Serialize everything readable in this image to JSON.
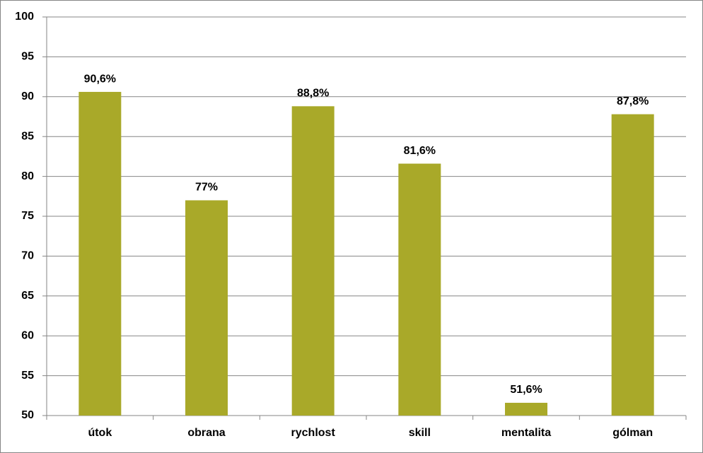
{
  "chart_data": {
    "type": "bar",
    "categories": [
      "útok",
      "obrana",
      "rychlost",
      "skill",
      "mentalita",
      "gólman"
    ],
    "values": [
      90.6,
      77,
      88.8,
      81.6,
      51.6,
      87.8
    ],
    "value_labels": [
      "90,6%",
      "77%",
      "88,8%",
      "81,6%",
      "51,6%",
      "87,8%"
    ],
    "color": "#a9a929",
    "ylim": [
      50,
      100
    ],
    "yticks": [
      50,
      55,
      60,
      65,
      70,
      75,
      80,
      85,
      90,
      95,
      100
    ],
    "grid": true
  }
}
